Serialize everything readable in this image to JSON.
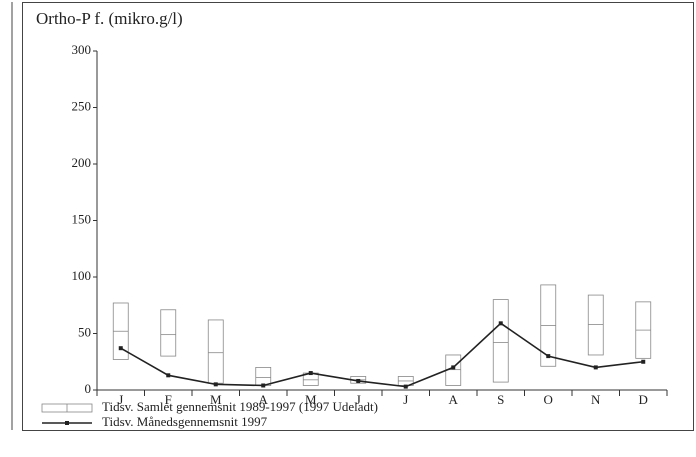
{
  "chart_data": {
    "type": "box",
    "title": "Ortho-P f. (mikro.g/l)",
    "categories": [
      "J",
      "F",
      "M",
      "A",
      "M",
      "J",
      "J",
      "A",
      "S",
      "O",
      "N",
      "D"
    ],
    "series": [
      {
        "name": "Tidsv. Samlet gennemsnit  1989-1997 (1997 Udeladt)",
        "type": "box",
        "color": "#888888",
        "low": [
          27,
          30,
          6,
          4,
          4,
          6,
          4,
          4,
          7,
          21,
          31,
          28
        ],
        "mean": [
          52,
          49,
          33,
          11,
          9,
          9,
          8,
          18,
          42,
          57,
          58,
          53
        ],
        "high": [
          77,
          71,
          62,
          20,
          15,
          12,
          12,
          31,
          80,
          93,
          84,
          78
        ]
      },
      {
        "name": "Tidsv. Månedsgennemsnit  1997",
        "type": "line",
        "color": "#222222",
        "values": [
          37,
          13,
          5,
          4,
          15,
          8,
          3,
          20,
          59,
          30,
          20,
          25
        ]
      }
    ],
    "ylim": [
      0,
      300
    ],
    "yticks": [
      0,
      50,
      100,
      150,
      200,
      250,
      300
    ]
  }
}
